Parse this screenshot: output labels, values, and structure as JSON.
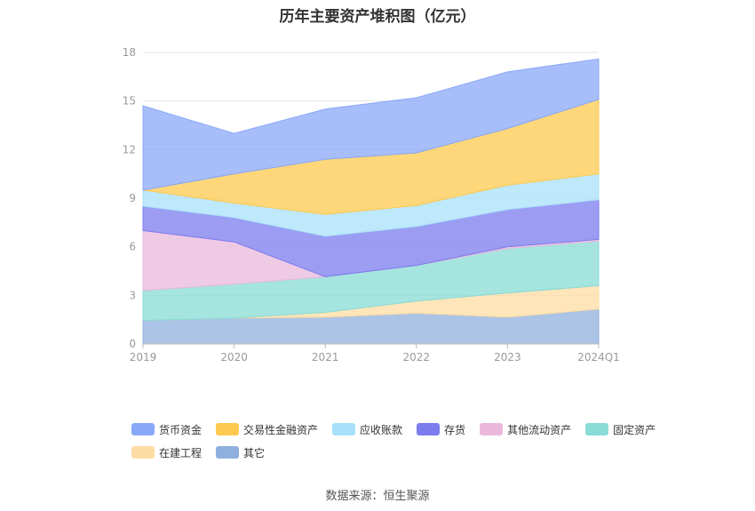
{
  "chart_data": {
    "type": "area",
    "stacked": true,
    "title": "历年主要资产堆积图（亿元）",
    "categories": [
      "2019",
      "2020",
      "2021",
      "2022",
      "2023",
      "2024Q1"
    ],
    "ylim": [
      0,
      18
    ],
    "yticks": [
      "0",
      "3",
      "6",
      "9",
      "12",
      "15",
      "18"
    ],
    "grid": true,
    "legend_position": "bottom",
    "series": [
      {
        "name": "其它",
        "color": "#8fb0de",
        "values": [
          1.45,
          1.6,
          1.65,
          1.9,
          1.65,
          2.15
        ]
      },
      {
        "name": "在建工程",
        "color": "#fddca3",
        "values": [
          0.0,
          0.0,
          0.3,
          0.75,
          1.5,
          1.45
        ]
      },
      {
        "name": "固定资产",
        "color": "#88dbd6",
        "values": [
          1.85,
          2.1,
          2.2,
          2.2,
          2.75,
          2.75
        ]
      },
      {
        "name": "其他流动资产",
        "color": "#eab8dc",
        "values": [
          3.7,
          2.6,
          0.0,
          0.0,
          0.1,
          0.1
        ]
      },
      {
        "name": "存货",
        "color": "#7b7cee",
        "values": [
          1.5,
          1.5,
          2.5,
          2.4,
          2.3,
          2.45
        ]
      },
      {
        "name": "应收账款",
        "color": "#a8e0fa",
        "values": [
          1.0,
          0.9,
          1.35,
          1.3,
          1.5,
          1.6
        ]
      },
      {
        "name": "交易性金融资产",
        "color": "#fdc94f",
        "values": [
          0.0,
          1.8,
          3.4,
          3.25,
          3.5,
          4.6
        ]
      },
      {
        "name": "货币资金",
        "color": "#8aa8f8",
        "values": [
          5.2,
          2.5,
          3.1,
          3.4,
          3.5,
          2.5
        ]
      }
    ]
  },
  "legend_items": [
    {
      "label": "货币资金",
      "color": "#8aa8f8"
    },
    {
      "label": "交易性金融资产",
      "color": "#fdc94f"
    },
    {
      "label": "应收账款",
      "color": "#a8e0fa"
    },
    {
      "label": "存货",
      "color": "#7b7cee"
    },
    {
      "label": "其他流动资产",
      "color": "#eab8dc"
    },
    {
      "label": "固定资产",
      "color": "#88dbd6"
    },
    {
      "label": "在建工程",
      "color": "#fddca3"
    },
    {
      "label": "其它",
      "color": "#8fb0de"
    }
  ],
  "source": "数据来源：恒生聚源"
}
